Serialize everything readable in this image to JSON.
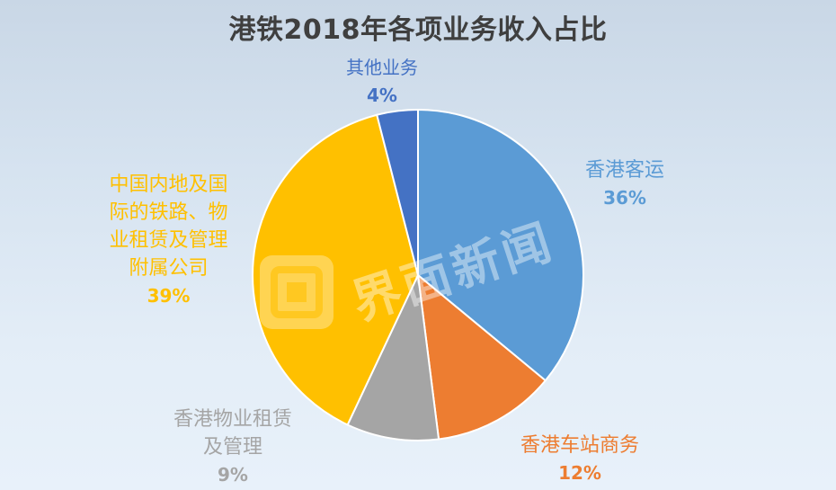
{
  "chart_data": {
    "type": "pie",
    "title": "港铁2018年各项业务收入占比",
    "start_angle_deg": 0,
    "direction": "clockwise",
    "legend": "none",
    "slices": [
      {
        "label_lines": [
          "香港客运"
        ],
        "value": 36,
        "value_label": "36%",
        "color": "#5b9bd5"
      },
      {
        "label_lines": [
          "香港车站商务"
        ],
        "value": 12,
        "value_label": "12%",
        "color": "#ed7d31"
      },
      {
        "label_lines": [
          "香港物业租赁",
          "及管理"
        ],
        "value": 9,
        "value_label": "9%",
        "color": "#a5a5a5"
      },
      {
        "label_lines": [
          "中国内地及国",
          "际的铁路、物",
          "业租赁及管理",
          "附属公司"
        ],
        "value": 39,
        "value_label": "39%",
        "color": "#ffc000"
      },
      {
        "label_lines": [
          "其他业务"
        ],
        "value": 4,
        "value_label": "4%",
        "color": "#4472c4"
      }
    ]
  },
  "watermark": {
    "text": "界面新闻",
    "icon": "jiemian-logo-icon"
  }
}
